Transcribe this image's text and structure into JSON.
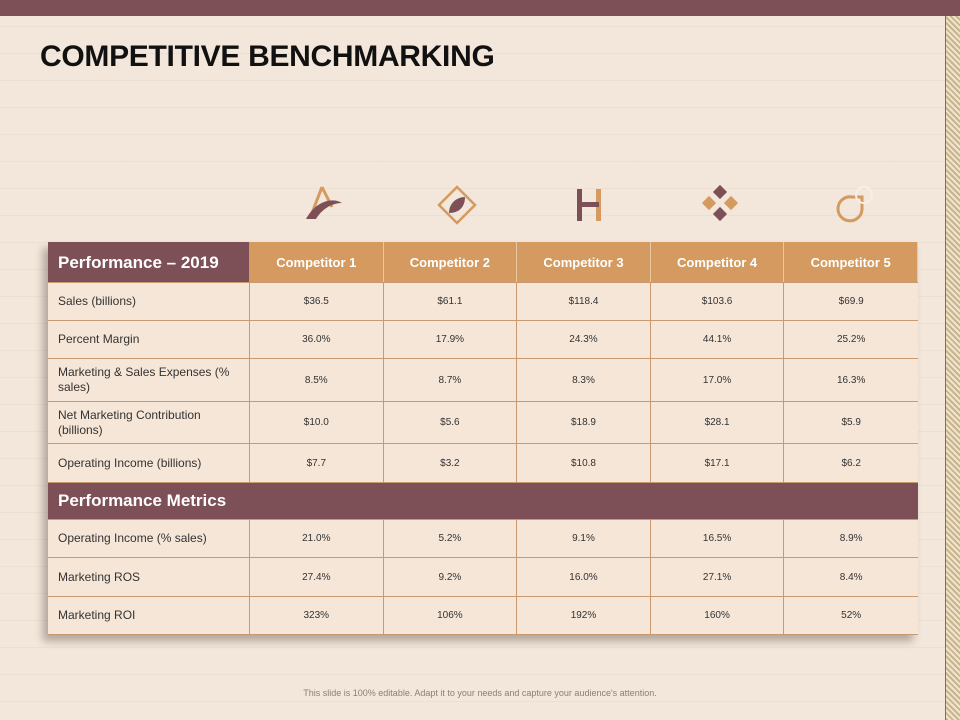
{
  "title": "COMPETITIVE BENCHMARKING",
  "icons": [
    "brand-a-icon",
    "leaf-diamond-icon",
    "h-monogram-icon",
    "quatrefoil-icon",
    "circle-ring-icon"
  ],
  "table": {
    "header_label": "Performance – 2019",
    "competitors": [
      "Competitor 1",
      "Competitor 2",
      "Competitor 3",
      "Competitor 4",
      "Competitor 5"
    ],
    "section1_rows": [
      {
        "label": "Sales (billions)",
        "values": [
          "$36.5",
          "$61.1",
          "$118.4",
          "$103.6",
          "$69.9"
        ]
      },
      {
        "label": "Percent Margin",
        "values": [
          "36.0%",
          "17.9%",
          "24.3%",
          "44.1%",
          "25.2%"
        ]
      },
      {
        "label": "Marketing & Sales Expenses (% sales)",
        "values": [
          "8.5%",
          "8.7%",
          "8.3%",
          "17.0%",
          "16.3%"
        ]
      },
      {
        "label": "Net Marketing Contribution (billions)",
        "values": [
          "$10.0",
          "$5.6",
          "$18.9",
          "$28.1",
          "$5.9"
        ]
      },
      {
        "label": "Operating Income (billions)",
        "values": [
          "$7.7",
          "$3.2",
          "$10.8",
          "$17.1",
          "$6.2"
        ]
      }
    ],
    "section2_title": "Performance Metrics",
    "section2_rows": [
      {
        "label": "Operating Income (% sales)",
        "values": [
          "21.0%",
          "5.2%",
          "9.1%",
          "16.5%",
          "8.9%"
        ]
      },
      {
        "label": "Marketing ROS",
        "values": [
          "27.4%",
          "9.2%",
          "16.0%",
          "27.1%",
          "8.4%"
        ]
      },
      {
        "label": "Marketing ROI",
        "values": [
          "323%",
          "106%",
          "192%",
          "160%",
          "52%"
        ]
      }
    ]
  },
  "footer": "This slide is 100% editable. Adapt it to your needs and capture your audience's attention.",
  "colors": {
    "maroon": "#7d5058",
    "tan": "#d49a5f",
    "background": "#f3e6da"
  }
}
